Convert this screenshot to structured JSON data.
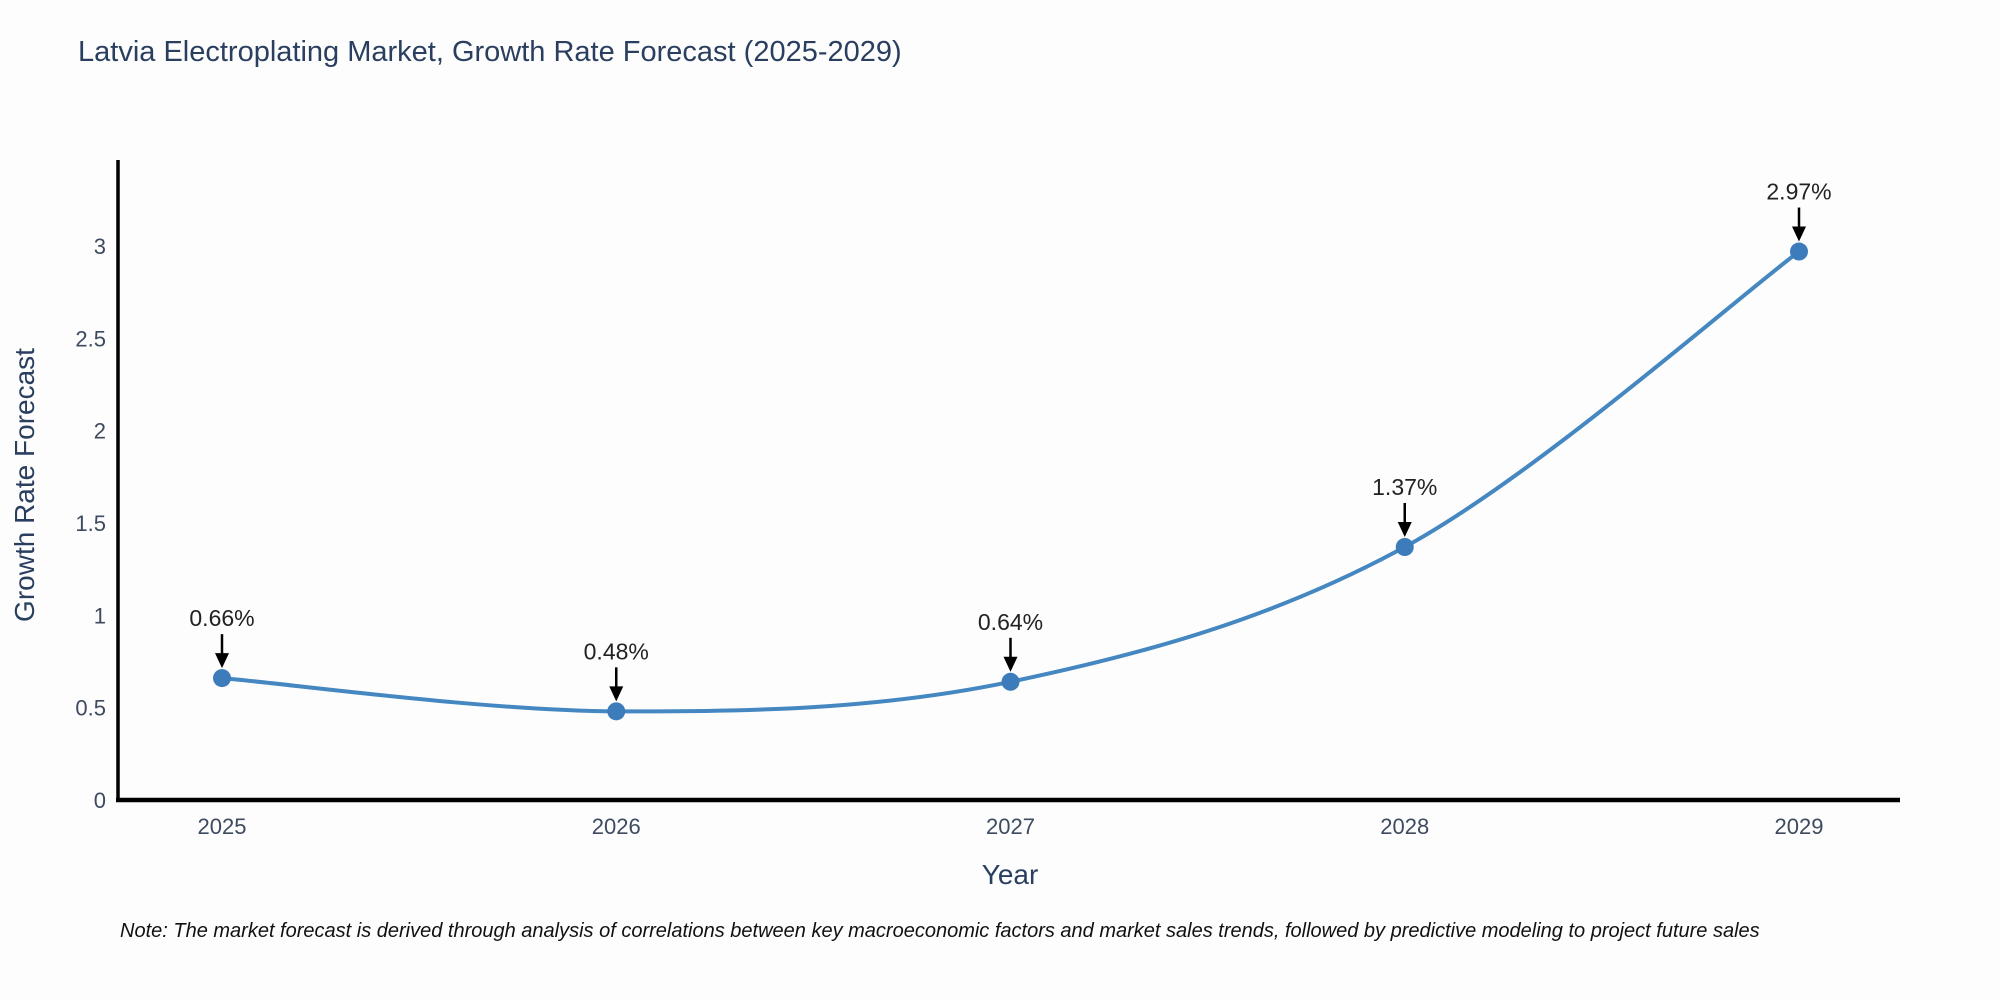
{
  "chart_data": {
    "type": "line",
    "line_shape": "spline",
    "title": "Latvia Electroplating Market, Growth Rate Forecast (2025-2029)",
    "xlabel": "Year",
    "ylabel": "Growth Rate Forecast",
    "x": [
      "2025",
      "2026",
      "2027",
      "2028",
      "2029"
    ],
    "series": [
      {
        "name": "Growth Rate Forecast",
        "values": [
          0.66,
          0.48,
          0.64,
          1.37,
          2.97
        ],
        "point_labels": [
          "0.66%",
          "0.48%",
          "0.64%",
          "1.37%",
          "2.97%"
        ]
      }
    ],
    "yticks": [
      0,
      0.5,
      1,
      1.5,
      2,
      2.5,
      3
    ],
    "ytick_labels": [
      "0",
      "0.5",
      "1",
      "1.5",
      "2",
      "2.5",
      "3"
    ],
    "ylim": [
      0,
      3.47
    ],
    "grid": false,
    "legend": "none",
    "annotations_style": "black arrow pointing down to each marker",
    "note": "Note: The market forecast is derived through analysis of correlations between key macroeconomic factors and market sales trends, followed by predictive modeling to project future sales",
    "colors": {
      "line": "#4487c1",
      "marker": "#3d7cba",
      "axis": "#000000",
      "arrow": "#000000",
      "title_text": "#2a3f5f",
      "tick_text": "#3d4a5f",
      "annotation_text": "#222222",
      "note_text": "#111111",
      "background": "#fdfdfd"
    }
  }
}
